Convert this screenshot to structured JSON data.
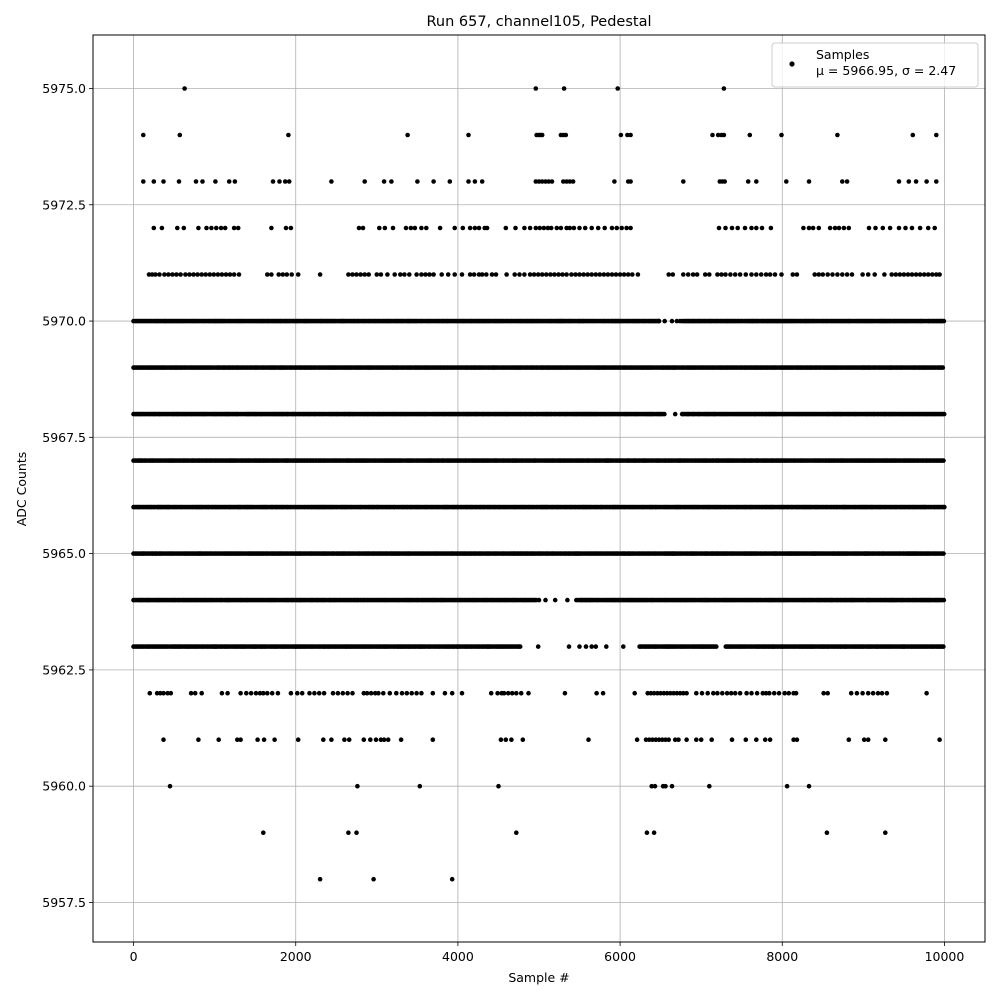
{
  "chart_data": {
    "type": "scatter",
    "title": "Run 657, channel105, Pedestal",
    "xlabel": "Sample #",
    "ylabel": "ADC Counts",
    "xlim": [
      -500,
      10500
    ],
    "ylim": [
      5956.65,
      5976.15
    ],
    "xticks": [
      0,
      2000,
      4000,
      6000,
      8000,
      10000
    ],
    "xtick_labels": [
      "0",
      "2000",
      "4000",
      "6000",
      "8000",
      "10000"
    ],
    "yticks": [
      5957.5,
      5960.0,
      5962.5,
      5965.0,
      5967.5,
      5970.0,
      5972.5,
      5975.0
    ],
    "ytick_labels": [
      "5957.5",
      "5960.0",
      "5962.5",
      "5965.0",
      "5967.5",
      "5970.0",
      "5972.5",
      "5975.0"
    ],
    "grid": true,
    "legend": {
      "placement": "top-right",
      "entries": [
        {
          "name": "Samples",
          "detail": "μ = 5966.95, σ = 2.47"
        }
      ]
    },
    "marker_color": "#000000",
    "x_range": [
      0,
      9999
    ],
    "series": [
      {
        "name": "Samples",
        "levels": [
          {
            "y": 5975,
            "x": [
              630,
              4960,
              5310,
              5970,
              7280
            ]
          },
          {
            "y": 5974,
            "x": [
              120,
              570,
              1910,
              3380,
              4130,
              4970,
              5000,
              5020,
              5040,
              5270,
              5300,
              5330,
              6010,
              6090,
              6130,
              7140,
              7210,
              7250,
              7280,
              7600,
              7990,
              8680,
              9610,
              9900
            ]
          },
          {
            "y": 5973,
            "x": [
              120,
              250,
              370,
              560,
              770,
              850,
              1010,
              1180,
              1250,
              1720,
              1800,
              1870,
              1920,
              2440,
              2850,
              3090,
              3180,
              3500,
              3700,
              3900,
              4130,
              4210,
              4300,
              4960,
              5000,
              5040,
              5080,
              5120,
              5160,
              5300,
              5340,
              5380,
              5420,
              5930,
              6100,
              6130,
              6780,
              7230,
              7260,
              7290,
              7580,
              7680,
              8050,
              8330,
              8740,
              8800,
              9440,
              9560,
              9650,
              9780,
              9900
            ]
          },
          {
            "y": 5972,
            "x": [
              250,
              350,
              540,
              620,
              800,
              900,
              960,
              1020,
              1080,
              1130,
              1240,
              1290,
              1700,
              1880,
              1940,
              2780,
              2830,
              3030,
              3100,
              3200,
              3360,
              3420,
              3470,
              3550,
              3610,
              3780,
              3960,
              4060,
              4150,
              4210,
              4260,
              4330,
              4360,
              4590,
              4710,
              4820,
              4890,
              4960,
              5010,
              5060,
              5110,
              5150,
              5220,
              5270,
              5340,
              5380,
              5430,
              5500,
              5570,
              5650,
              5730,
              5810,
              5900,
              5960,
              6020,
              6080,
              6130,
              7220,
              7300,
              7380,
              7450,
              7540,
              7620,
              7680,
              7750,
              7860,
              8260,
              8330,
              8380,
              8450,
              8590,
              8650,
              8700,
              8760,
              8820,
              9070,
              9150,
              9240,
              9330,
              9440,
              9520,
              9600,
              9700,
              9800,
              9880
            ]
          },
          {
            "y": 5971,
            "x": [
              190,
              230,
              270,
              320,
              380,
              430,
              480,
              530,
              580,
              640,
              690,
              740,
              790,
              840,
              890,
              940,
              990,
              1040,
              1090,
              1140,
              1190,
              1240,
              1300,
              1650,
              1700,
              1790,
              1840,
              1890,
              1950,
              2030,
              2300,
              2650,
              2700,
              2750,
              2800,
              2850,
              2900,
              3000,
              3050,
              3130,
              3220,
              3290,
              3340,
              3400,
              3490,
              3550,
              3600,
              3650,
              3700,
              3800,
              3880,
              3960,
              4050,
              4150,
              4200,
              4260,
              4300,
              4350,
              4420,
              4470,
              4600,
              4700,
              4760,
              4820,
              4890,
              4940,
              4990,
              5040,
              5090,
              5140,
              5190,
              5240,
              5290,
              5340,
              5400,
              5450,
              5500,
              5550,
              5600,
              5650,
              5700,
              5750,
              5800,
              5850,
              5900,
              5950,
              6000,
              6050,
              6100,
              6150,
              6220,
              6600,
              6650,
              6780,
              6840,
              6900,
              6950,
              7050,
              7100,
              7200,
              7250,
              7300,
              7360,
              7420,
              7480,
              7550,
              7620,
              7680,
              7740,
              7800,
              7850,
              7910,
              7990,
              8130,
              8180,
              8400,
              8450,
              8500,
              8560,
              8620,
              8680,
              8740,
              8800,
              8860,
              8990,
              9060,
              9140,
              9260,
              9350,
              9400,
              9450,
              9500,
              9550,
              9600,
              9650,
              9700,
              9750,
              9800,
              9850,
              9900,
              9940
            ]
          },
          {
            "y": 5970,
            "dense": true,
            "gaps": [
              [
                6480,
                6760
              ]
            ],
            "sparse": [
              6480,
              6550,
              6640,
              6700,
              6740
            ]
          },
          {
            "y": 5969,
            "dense": true
          },
          {
            "y": 5968,
            "dense": true,
            "gaps": [
              [
                6560,
                6760
              ]
            ],
            "sparse": [
              6680
            ]
          },
          {
            "y": 5967,
            "dense": true
          },
          {
            "y": 5966,
            "dense": true
          },
          {
            "y": 5965,
            "dense": true
          },
          {
            "y": 5964,
            "dense": true,
            "gaps": [
              [
                4980,
                5480
              ]
            ],
            "sparse": [
              5000,
              5080,
              5200,
              5350,
              5460
            ]
          },
          {
            "y": 5963,
            "dense": true,
            "gaps": [
              [
                4780,
                6240
              ],
              [
                7200,
                7300
              ]
            ],
            "sparse": [
              4990,
              5370,
              5500,
              5580,
              5650,
              5700,
              5830,
              6040
            ]
          },
          {
            "y": 5962,
            "x": [
              200,
              290,
              330,
              370,
              420,
              460,
              710,
              760,
              840,
              1090,
              1160,
              1320,
              1390,
              1450,
              1510,
              1560,
              1600,
              1650,
              1710,
              1780,
              1940,
              2020,
              2080,
              2170,
              2230,
              2290,
              2350,
              2460,
              2520,
              2580,
              2640,
              2700,
              2840,
              2880,
              2930,
              2980,
              3020,
              3080,
              3160,
              3240,
              3310,
              3370,
              3430,
              3490,
              3550,
              3690,
              3840,
              3930,
              4050,
              4410,
              4490,
              4540,
              4570,
              4620,
              4670,
              4720,
              4780,
              4870,
              5320,
              5710,
              5790,
              6180,
              6340,
              6380,
              6420,
              6460,
              6500,
              6540,
              6580,
              6620,
              6660,
              6700,
              6740,
              6780,
              6820,
              6940,
              7010,
              7080,
              7150,
              7200,
              7260,
              7320,
              7370,
              7420,
              7480,
              7560,
              7620,
              7690,
              7760,
              7800,
              7840,
              7900,
              7960,
              8030,
              8080,
              8140,
              8170,
              8510,
              8560,
              8850,
              8920,
              8990,
              9060,
              9120,
              9180,
              9230,
              9290,
              9780
            ]
          },
          {
            "y": 5961,
            "x": [
              370,
              800,
              1050,
              1280,
              1320,
              1530,
              1610,
              1740,
              2030,
              2340,
              2440,
              2600,
              2660,
              2840,
              2920,
              2990,
              3050,
              3090,
              3140,
              3300,
              3690,
              4530,
              4590,
              4660,
              4800,
              5610,
              6210,
              6320,
              6360,
              6400,
              6440,
              6480,
              6520,
              6560,
              6600,
              6680,
              6720,
              6820,
              6940,
              7000,
              7130,
              7380,
              7550,
              7680,
              7790,
              7850,
              8140,
              8180,
              8820,
              9010,
              9060,
              9270,
              9940
            ]
          },
          {
            "y": 5960,
            "x": [
              450,
              2760,
              3530,
              4500,
              6390,
              6430,
              6530,
              6560,
              6640,
              7100,
              8060,
              8330
            ]
          },
          {
            "y": 5959,
            "x": [
              1600,
              2650,
              2750,
              4720,
              6330,
              6420,
              8550,
              9270
            ]
          },
          {
            "y": 5958,
            "x": [
              2300,
              2960,
              3930
            ]
          }
        ]
      }
    ]
  }
}
